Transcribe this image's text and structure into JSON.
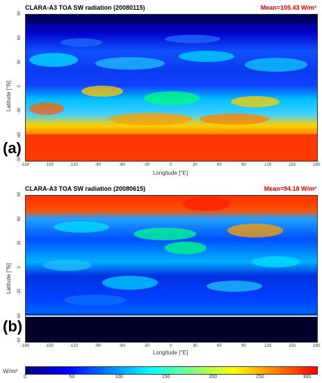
{
  "panels": [
    {
      "id": "a",
      "title": "CLARA-A3 TOA SW radiation (20080115)",
      "mean": "Mean=105.43 W/m²",
      "letter": "(a)",
      "ylabel": "Latitude [°N]",
      "xlabel": "Longitude [°E]",
      "yticks": [
        "90",
        "60",
        "30",
        "0",
        "-30",
        "-60",
        "-90"
      ],
      "xticks": [
        "-180",
        "-150",
        "-120",
        "-90",
        "-60",
        "-30",
        "0",
        "30",
        "60",
        "90",
        "120",
        "150",
        "180"
      ]
    },
    {
      "id": "b",
      "title": "CLARA-A3 TOA SW radiation (20080615)",
      "mean": "Mean=94.18 W/m²",
      "letter": "(b)",
      "ylabel": "Latitude [°N]",
      "xlabel": "Longitude [°E]",
      "yticks": [
        "90",
        "60",
        "30",
        "0",
        "-30",
        "-60",
        "-90"
      ],
      "xticks": [
        "-180",
        "-150",
        "-120",
        "-90",
        "-60",
        "-30",
        "0",
        "30",
        "60",
        "90",
        "120",
        "150",
        "180"
      ]
    }
  ],
  "colorbar": {
    "label": "W/m²",
    "ticks": [
      "0",
      "50",
      "100",
      "150",
      "200",
      "250",
      "300"
    ],
    "colors": [
      "#000080",
      "#0000ff",
      "#0080ff",
      "#00ffff",
      "#80ff80",
      "#ffff00",
      "#ff8000",
      "#ff0000"
    ]
  },
  "colors": {
    "mean_text": "#e00000"
  }
}
